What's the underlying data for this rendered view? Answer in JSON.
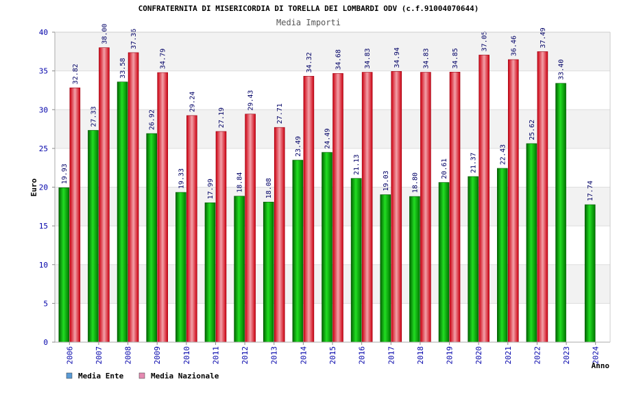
{
  "chart_data": {
    "type": "bar",
    "title": "CONFRATERNITA DI MISERICORDIA DI TORELLA DEI LOMBARDI ODV (c.f.91004070644)",
    "subtitle": "Media Importi",
    "xlabel": "Anno",
    "ylabel": "Euro",
    "ylim": [
      0,
      40
    ],
    "yticks": [
      0,
      5,
      10,
      15,
      20,
      25,
      30,
      35,
      40
    ],
    "grid": true,
    "legend_position": "bottom-left",
    "categories": [
      "2006",
      "2007",
      "2008",
      "2009",
      "2010",
      "2011",
      "2012",
      "2013",
      "2014",
      "2015",
      "2016",
      "2017",
      "2018",
      "2019",
      "2020",
      "2021",
      "2022",
      "2023",
      "2024"
    ],
    "series": [
      {
        "name": "Media Ente",
        "color": "#00b000",
        "legend_color": "#5b9bd5",
        "values": [
          19.93,
          27.33,
          33.58,
          26.92,
          19.33,
          17.99,
          18.84,
          18.08,
          23.49,
          24.49,
          21.13,
          19.03,
          18.8,
          20.61,
          21.37,
          22.43,
          25.62,
          33.4,
          17.74
        ],
        "labels": [
          "19.93",
          "27.33",
          "33.58",
          "26.92",
          "19.33",
          "17.99",
          "18.84",
          "18.08",
          "23.49",
          "24.49",
          "21.13",
          "19.03",
          "18.80",
          "20.61",
          "21.37",
          "22.43",
          "25.62",
          "33.40",
          "17.74"
        ]
      },
      {
        "name": "Media Nazionale",
        "color": "#e8202a",
        "legend_color": "#e58ab2",
        "values": [
          32.82,
          38.0,
          37.36,
          34.79,
          29.24,
          27.19,
          29.43,
          27.71,
          34.32,
          34.68,
          34.83,
          34.94,
          34.83,
          34.85,
          37.05,
          36.46,
          37.49,
          null,
          null
        ],
        "labels": [
          "32.82",
          "38.00",
          "37.36",
          "34.79",
          "29.24",
          "27.19",
          "29.43",
          "27.71",
          "34.32",
          "34.68",
          "34.83",
          "34.94",
          "34.83",
          "34.85",
          "37.05",
          "36.46",
          "37.49",
          null,
          null
        ]
      }
    ]
  }
}
